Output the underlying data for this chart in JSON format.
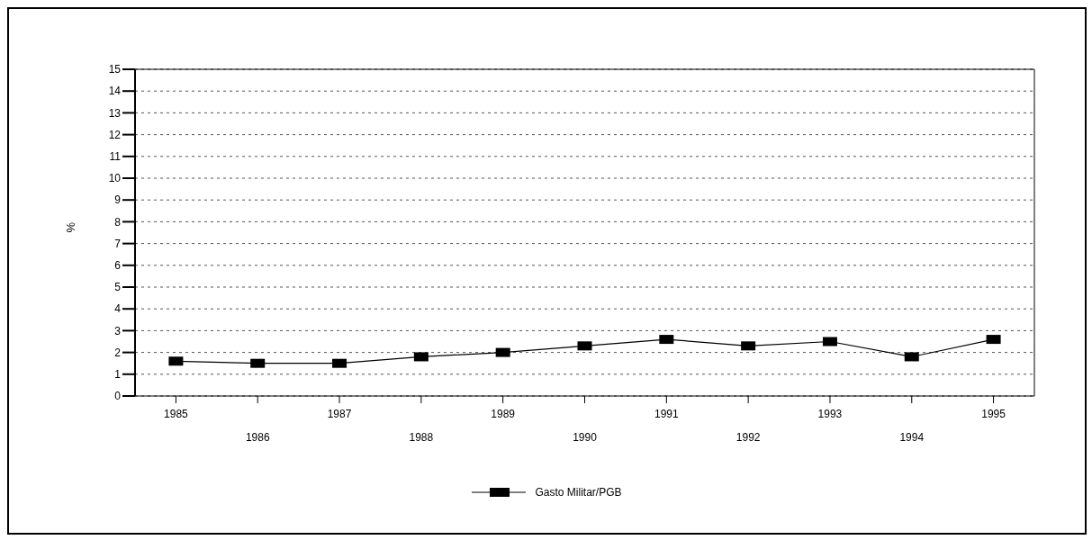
{
  "chart_data": {
    "type": "line",
    "ylabel": "%",
    "categories": [
      "1985",
      "1986",
      "1987",
      "1988",
      "1989",
      "1990",
      "1991",
      "1992",
      "1993",
      "1994",
      "1995"
    ],
    "series": [
      {
        "name": "Gasto Militar/PGB",
        "color": "#000000",
        "values": [
          1.6,
          1.5,
          1.5,
          1.8,
          2.0,
          2.3,
          2.6,
          2.3,
          2.5,
          1.8,
          2.6
        ]
      }
    ],
    "ylim": [
      0,
      15
    ],
    "yticks": [
      0,
      1,
      2,
      3,
      4,
      5,
      6,
      7,
      8,
      9,
      10,
      11,
      12,
      13,
      14,
      15
    ],
    "grid": "y",
    "legend": "bottom",
    "marker": "square",
    "line_style": "solid"
  }
}
